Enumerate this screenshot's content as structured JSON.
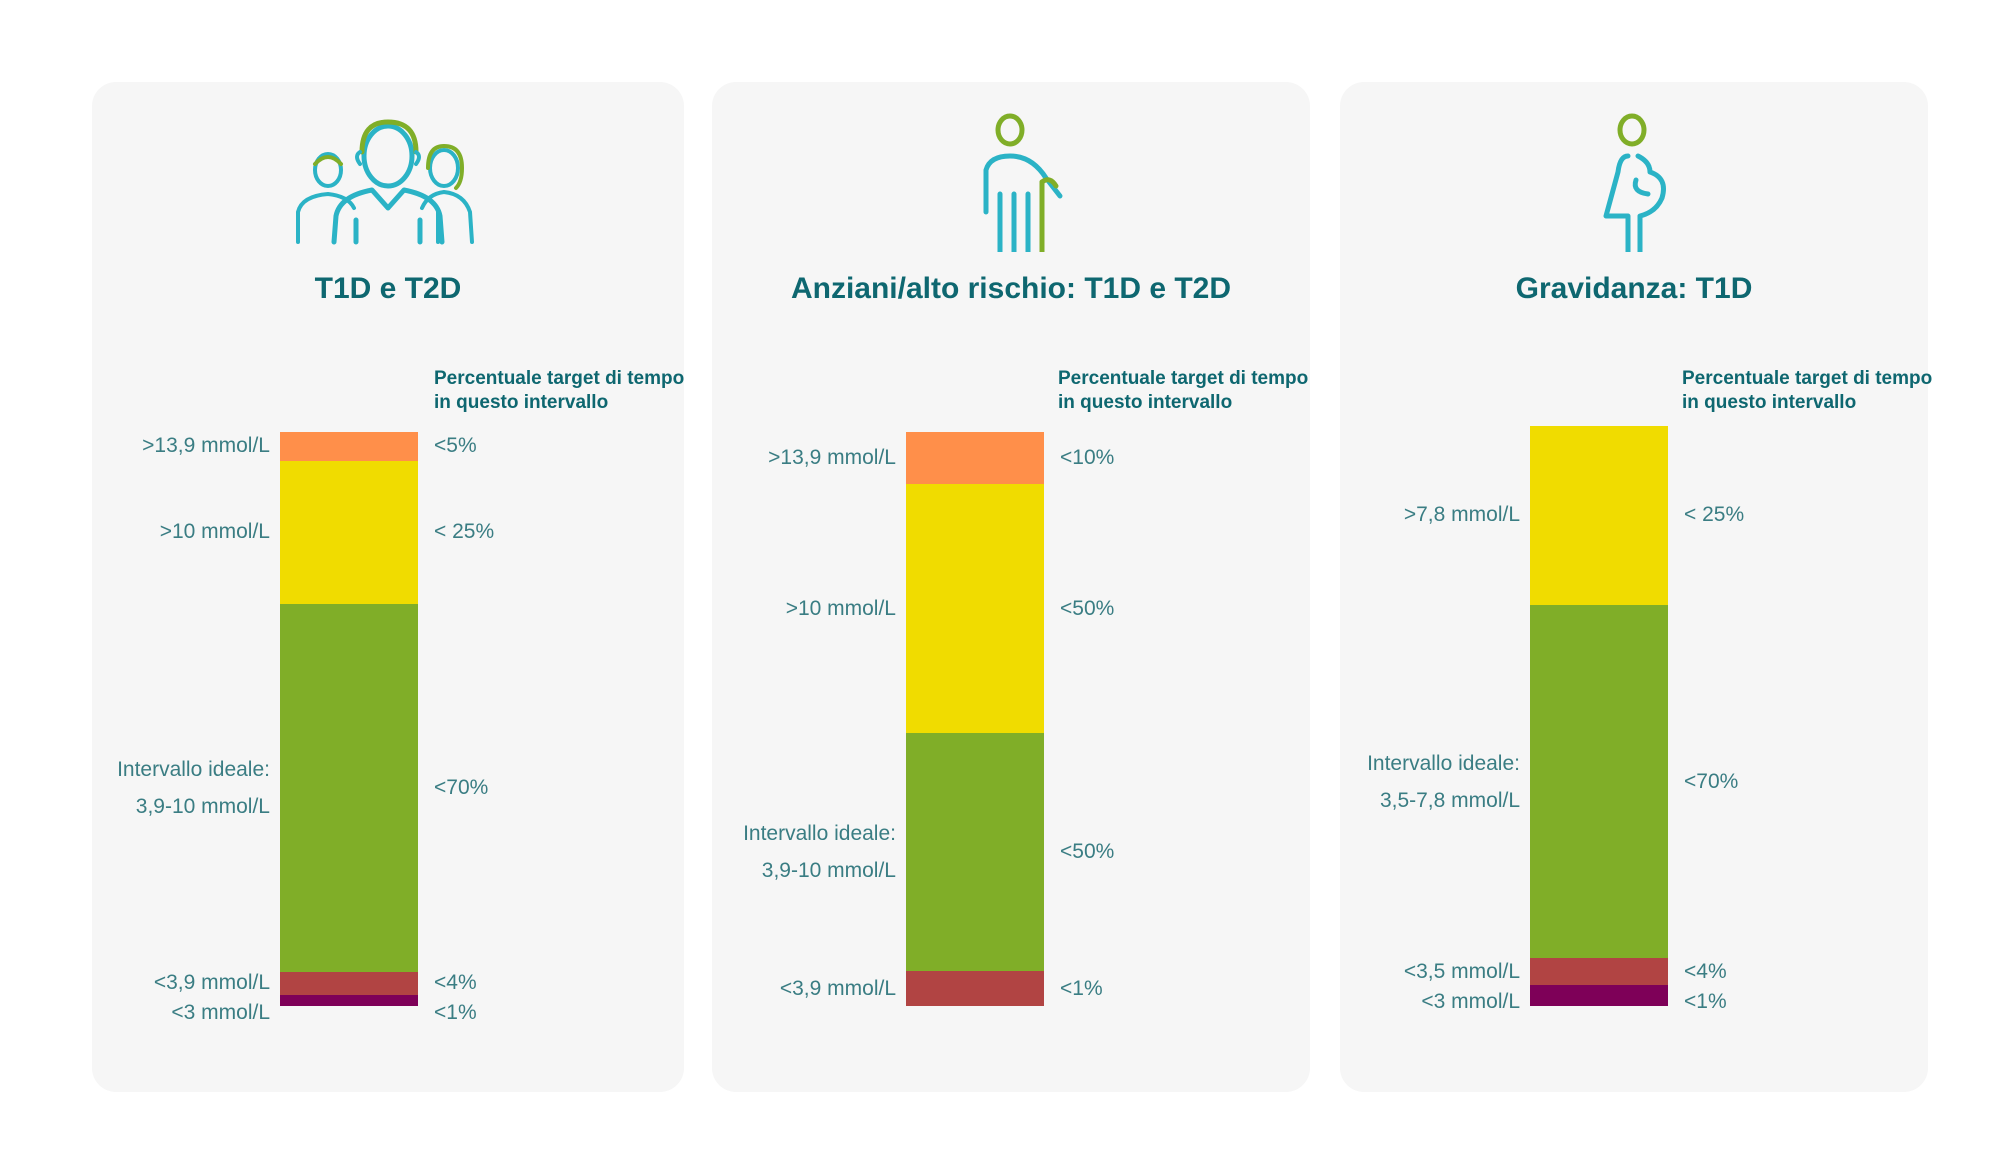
{
  "column_header": "Percentuale target di tempo in questo intervallo",
  "chart_data": [
    {
      "type": "bar",
      "title": "T1D e T2D",
      "icon": "family-icon",
      "segments": [
        {
          "label": ">13,9 mmol/L",
          "target": "<5%",
          "value": 5,
          "color": "#ff8f4a"
        },
        {
          "label": ">10 mmol/L",
          "target": "< 25%",
          "value": 25,
          "color": "#f0dc00"
        },
        {
          "label": "Intervallo ideale: 3,9-10 mmol/L",
          "target": "<70%",
          "value": 64,
          "color": "#80ae28"
        },
        {
          "label": "<3,9 mmol/L",
          "target": "<4%",
          "value": 4,
          "color": "#b14443"
        },
        {
          "label": "<3 mmol/L",
          "target": "<1%",
          "value": 2,
          "color": "#7e0058"
        }
      ]
    },
    {
      "type": "bar",
      "title": "Anziani/alto rischio: T1D e T2D",
      "icon": "elderly-with-cane-icon",
      "segments": [
        {
          "label": ">13,9 mmol/L",
          "target": "<10%",
          "value": 9,
          "color": "#ff8f4a"
        },
        {
          "label": ">10 mmol/L",
          "target": "<50%",
          "value": 43,
          "color": "#f0dc00"
        },
        {
          "label": "Intervallo ideale: 3,9-10 mmol/L",
          "target": "<50%",
          "value": 41,
          "color": "#80ae28"
        },
        {
          "label": "<3,9 mmol/L",
          "target": "<1%",
          "value": 6,
          "color": "#b14443"
        }
      ]
    },
    {
      "type": "bar",
      "title": "Gravidanza: T1D",
      "icon": "pregnant-woman-icon",
      "segments": [
        {
          "label": ">7,8 mmol/L",
          "target": "< 25%",
          "value": 30.8,
          "color": "#f0dc00"
        },
        {
          "label": "Intervallo ideale: 3,5-7,8 mmol/L",
          "target": "<70%",
          "value": 61,
          "color": "#80ae28"
        },
        {
          "label": "<3,5 mmol/L",
          "target": "<4%",
          "value": 4.6,
          "color": "#b14443"
        },
        {
          "label": "<3 mmol/L",
          "target": "<1%",
          "value": 3.6,
          "color": "#7e0058"
        }
      ]
    }
  ]
}
